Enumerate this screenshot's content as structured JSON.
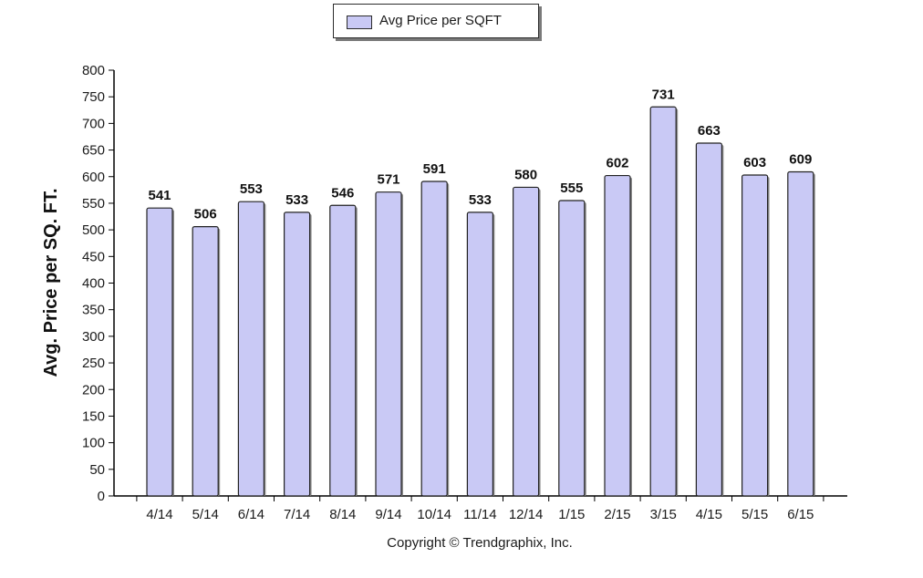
{
  "legend": {
    "label": "Avg Price per SQFT",
    "swatch_color": "#c9c9f5"
  },
  "copyright": "Copyright © Trendgraphix, Inc.",
  "chart_data": {
    "type": "bar",
    "title": "",
    "xlabel": "",
    "ylabel": "Avg. Price per SQ. FT.",
    "ylim": [
      0,
      800
    ],
    "ytick_step": 50,
    "grid": false,
    "legend_position": "top-center",
    "categories": [
      "4/14",
      "5/14",
      "6/14",
      "7/14",
      "8/14",
      "9/14",
      "10/14",
      "11/14",
      "12/14",
      "1/15",
      "2/15",
      "3/15",
      "4/15",
      "5/15",
      "6/15"
    ],
    "series": [
      {
        "name": "Avg Price per SQFT",
        "values": [
          541,
          506,
          553,
          533,
          546,
          571,
          591,
          533,
          580,
          555,
          602,
          731,
          663,
          603,
          609
        ],
        "color": "#c9c9f5"
      }
    ]
  }
}
